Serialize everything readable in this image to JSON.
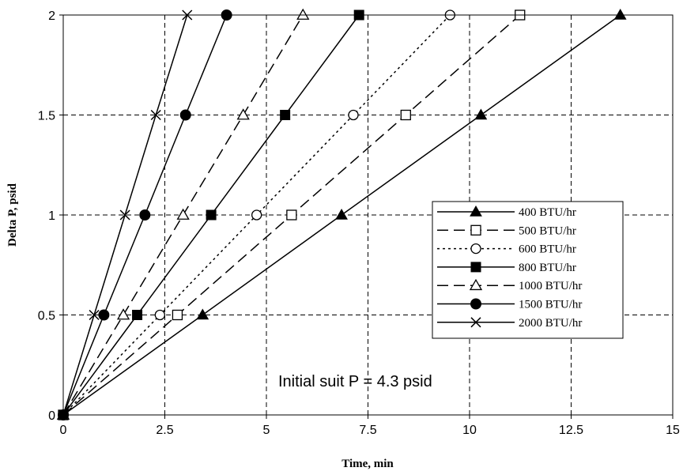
{
  "chart_data": {
    "type": "line",
    "xlabel": "Time, min",
    "ylabel": "Delta P, psid",
    "xlim": [
      0,
      15
    ],
    "ylim": [
      0,
      2
    ],
    "xticks": [
      0,
      2.5,
      5,
      7.5,
      10,
      12.5,
      15
    ],
    "yticks": [
      0,
      0.5,
      1,
      1.5,
      2
    ],
    "xtick_labels": [
      "0",
      "2.5",
      "5",
      "7.5",
      "10",
      "12.5",
      "15"
    ],
    "ytick_labels": [
      "0",
      "0.5",
      "1",
      "1.5",
      "2"
    ],
    "grid": true,
    "legend_position": "right",
    "annotation": "Initial suit P = 4.3 psid",
    "series": [
      {
        "name": "400 BTU/hr",
        "marker": "triangle-filled",
        "dash": "solid",
        "x": [
          0,
          3.43,
          6.85,
          10.28,
          13.71
        ],
        "y": [
          0,
          0.5,
          1,
          1.5,
          2
        ]
      },
      {
        "name": "500 BTU/hr",
        "marker": "square-open",
        "dash": "long-dash",
        "x": [
          0,
          2.81,
          5.62,
          8.43,
          11.24
        ],
        "y": [
          0,
          0.5,
          1,
          1.5,
          2
        ]
      },
      {
        "name": "600 BTU/hr",
        "marker": "circle-open",
        "dash": "dotted",
        "x": [
          0,
          2.38,
          4.76,
          7.14,
          9.52
        ],
        "y": [
          0,
          0.5,
          1,
          1.5,
          2
        ]
      },
      {
        "name": "800 BTU/hr",
        "marker": "square-filled",
        "dash": "solid",
        "x": [
          0,
          1.82,
          3.64,
          5.46,
          7.28
        ],
        "y": [
          0,
          0.5,
          1,
          1.5,
          2
        ]
      },
      {
        "name": "1000 BTU/hr",
        "marker": "triangle-open",
        "dash": "long-dash",
        "x": [
          0,
          1.48,
          2.95,
          4.43,
          5.9
        ],
        "y": [
          0,
          0.5,
          1,
          1.5,
          2
        ]
      },
      {
        "name": "1500 BTU/hr",
        "marker": "circle-filled",
        "dash": "solid",
        "x": [
          0,
          1.0,
          2.01,
          3.01,
          4.02
        ],
        "y": [
          0,
          0.5,
          1,
          1.5,
          2
        ]
      },
      {
        "name": "2000 BTU/hr",
        "marker": "x",
        "dash": "solid",
        "x": [
          0,
          0.76,
          1.52,
          2.28,
          3.05
        ],
        "y": [
          0,
          0.5,
          1,
          1.5,
          2
        ]
      }
    ]
  }
}
